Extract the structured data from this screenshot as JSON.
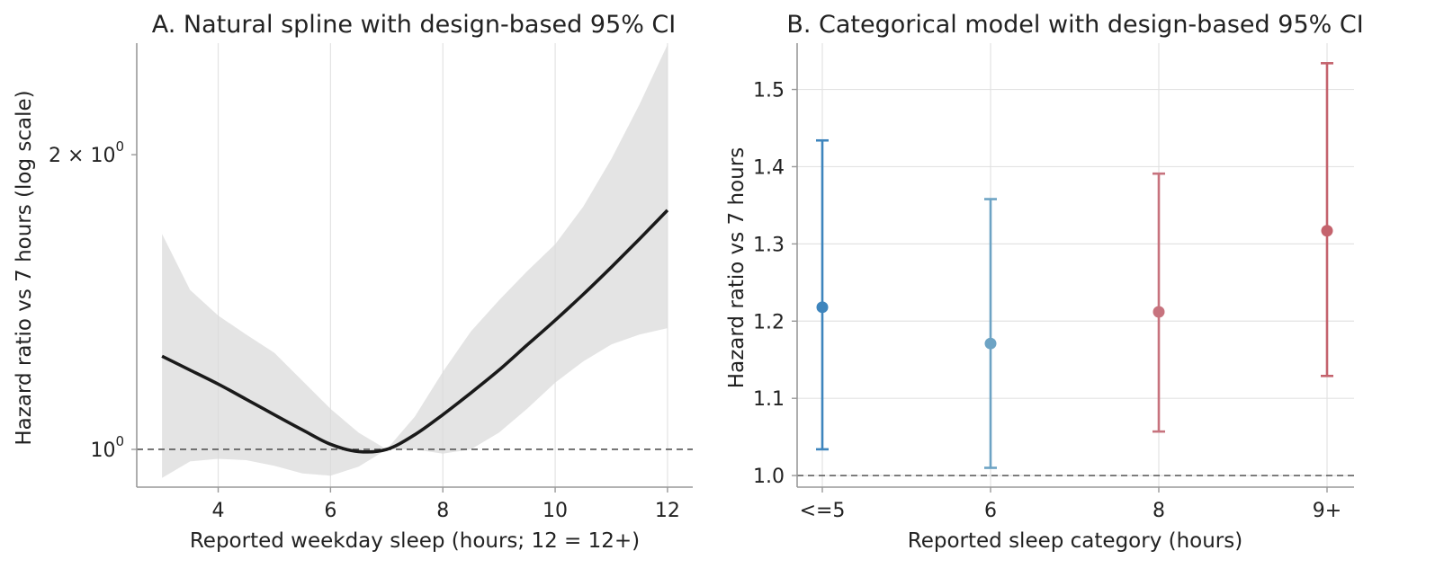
{
  "chart_data": [
    {
      "type": "line",
      "title": "A. Natural spline with design-based 95% CI",
      "xlabel": "Reported weekday sleep (hours; 12 = 12+)",
      "ylabel": "Hazard ratio vs 7 hours (log scale)",
      "xlim": [
        2.55,
        12.45
      ],
      "ylim": [
        0.915,
        2.6
      ],
      "yscale": "log",
      "xticks": [
        {
          "value": 4,
          "label": "4"
        },
        {
          "value": 6,
          "label": "6"
        },
        {
          "value": 8,
          "label": "8"
        },
        {
          "value": 10,
          "label": "10"
        },
        {
          "value": 12,
          "label": "12"
        }
      ],
      "yticks": [
        {
          "value": 1.0,
          "base": "10",
          "exp": "0",
          "label": "10^0"
        },
        {
          "value": 2.0,
          "base": "2 × 10",
          "exp": "0",
          "label": "2 × 10^0"
        }
      ],
      "reference_line": 1.0,
      "grid": "vertical",
      "line_color": "#1a1a1a",
      "band_color": "#d9d9d9",
      "series": [
        {
          "x": [
            3.0,
            3.5,
            4.0,
            4.5,
            5.0,
            5.5,
            6.0,
            6.5,
            7.0,
            7.5,
            8.0,
            8.5,
            9.0,
            9.5,
            10.0,
            10.5,
            11.0,
            11.5,
            12.0
          ],
          "y": [
            1.245,
            1.205,
            1.166,
            1.125,
            1.085,
            1.047,
            1.012,
            0.995,
            1.0,
            1.035,
            1.085,
            1.142,
            1.205,
            1.278,
            1.355,
            1.44,
            1.535,
            1.64,
            1.755
          ],
          "lower": [
            0.935,
            0.972,
            0.978,
            0.975,
            0.962,
            0.945,
            0.94,
            0.96,
            1.0,
            1.0,
            0.99,
            1.0,
            1.04,
            1.1,
            1.17,
            1.23,
            1.28,
            1.31,
            1.33
          ],
          "upper": [
            1.66,
            1.455,
            1.37,
            1.31,
            1.255,
            1.175,
            1.1,
            1.04,
            1.0,
            1.08,
            1.2,
            1.32,
            1.42,
            1.52,
            1.62,
            1.77,
            1.98,
            2.25,
            2.59
          ]
        }
      ]
    },
    {
      "type": "scatter",
      "subtype": "errorbar",
      "title": "B. Categorical model with design-based 95% CI",
      "xlabel": "Reported sleep category (hours)",
      "ylabel": "Hazard ratio vs 7 hours",
      "categories": [
        "<=5",
        "6",
        "8",
        "9+"
      ],
      "ylim": [
        0.985,
        1.56
      ],
      "yticks": [
        "1.0",
        "1.1",
        "1.2",
        "1.3",
        "1.4",
        "1.5"
      ],
      "reference_line": 1.0,
      "grid": "both",
      "points": [
        {
          "category": "<=5",
          "estimate": 1.218,
          "lower": 1.034,
          "upper": 1.434,
          "color": "#3e85bd"
        },
        {
          "category": "6",
          "estimate": 1.171,
          "lower": 1.01,
          "upper": 1.358,
          "color": "#6da3c4"
        },
        {
          "category": "8",
          "estimate": 1.212,
          "lower": 1.057,
          "upper": 1.391,
          "color": "#c7737e"
        },
        {
          "category": "9+",
          "estimate": 1.317,
          "lower": 1.129,
          "upper": 1.534,
          "color": "#c4636d"
        }
      ]
    }
  ]
}
